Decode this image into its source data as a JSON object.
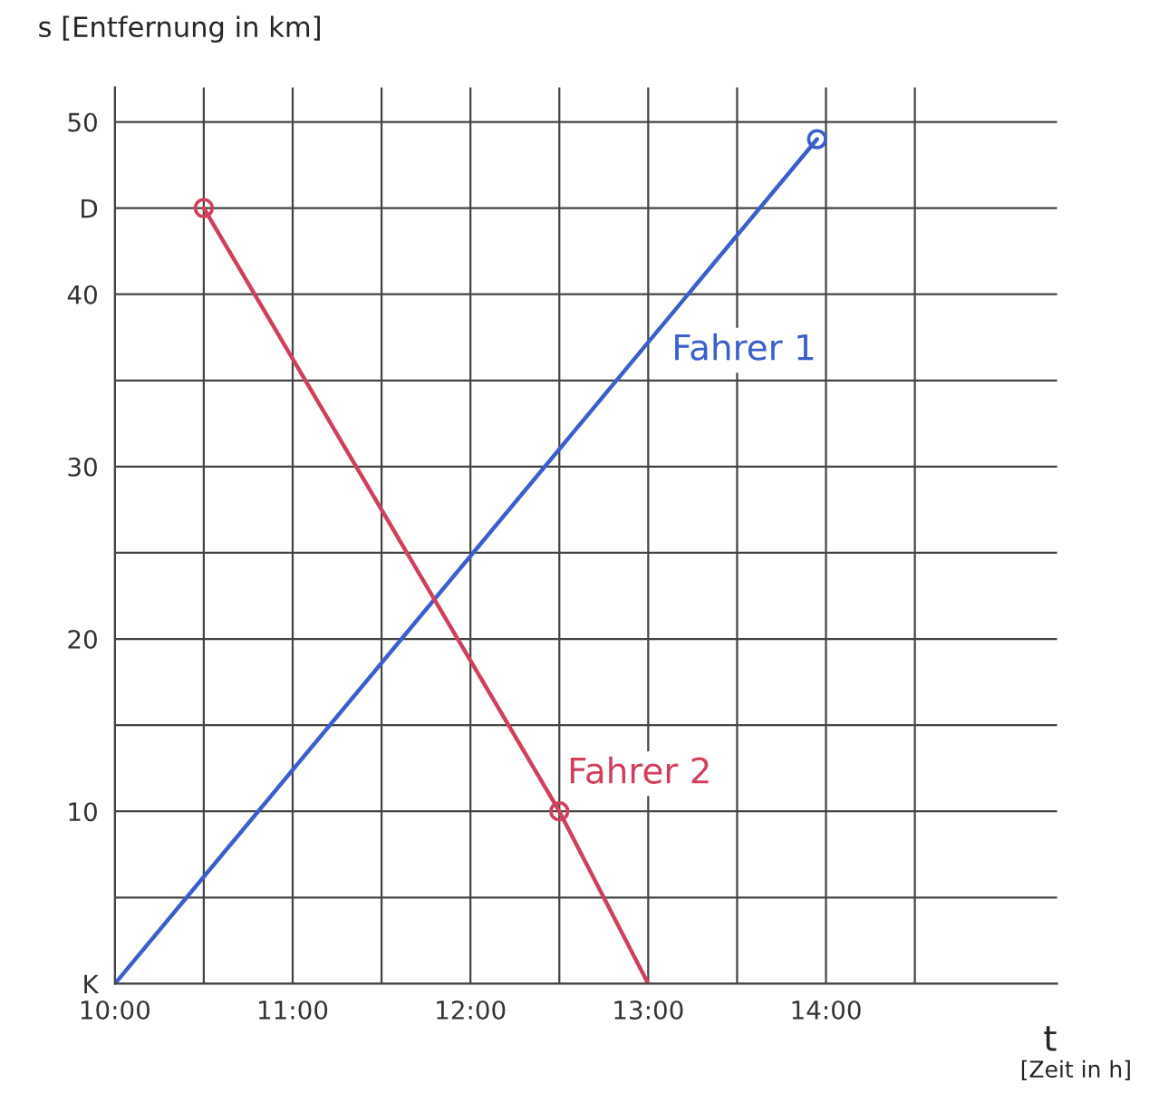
{
  "chart_data": {
    "type": "line",
    "xlabel": "t",
    "ylabel": "s [Entfernung in km]",
    "annotations": [
      "[Zeit in h]"
    ],
    "xlim": [
      10,
      15.3
    ],
    "ylim": [
      0,
      52
    ],
    "xticks": [
      {
        "value": 10,
        "label": "10:00"
      },
      {
        "value": 10.5,
        "label": null
      },
      {
        "value": 11,
        "label": "11:00"
      },
      {
        "value": 11.5,
        "label": null
      },
      {
        "value": 12,
        "label": "12:00"
      },
      {
        "value": 12.5,
        "label": null
      },
      {
        "value": 13,
        "label": "13:00"
      },
      {
        "value": 13.5,
        "label": null
      },
      {
        "value": 14,
        "label": "14:00"
      },
      {
        "value": 14.5,
        "label": null
      }
    ],
    "yticks": [
      {
        "value": 0,
        "label": "K"
      },
      {
        "value": 5,
        "label": null
      },
      10,
      {
        "value": 15,
        "label": null
      },
      20,
      {
        "value": 25,
        "label": null
      },
      30,
      {
        "value": 35,
        "label": null
      },
      40,
      {
        "value": 45,
        "label": "D"
      },
      50
    ],
    "grid": true,
    "series": [
      {
        "name": "Fahrer 1",
        "color": "#3a5fcd",
        "x": [
          10,
          13.95
        ],
        "values": [
          0,
          49
        ]
      },
      {
        "name": "Fahrer 2",
        "color": "#d0405a",
        "x": [
          10.5,
          12.5,
          13.0
        ],
        "values": [
          45,
          10,
          0
        ]
      },
      {
        "type": "scatter",
        "marker": "circle",
        "color": "#3a5fcd",
        "x": [
          13.95
        ],
        "values": [
          49
        ]
      },
      {
        "type": "scatter",
        "marker": "circle",
        "color": "#d0405a",
        "x": [
          10.5,
          12.5
        ],
        "values": [
          45,
          10
        ]
      }
    ]
  }
}
